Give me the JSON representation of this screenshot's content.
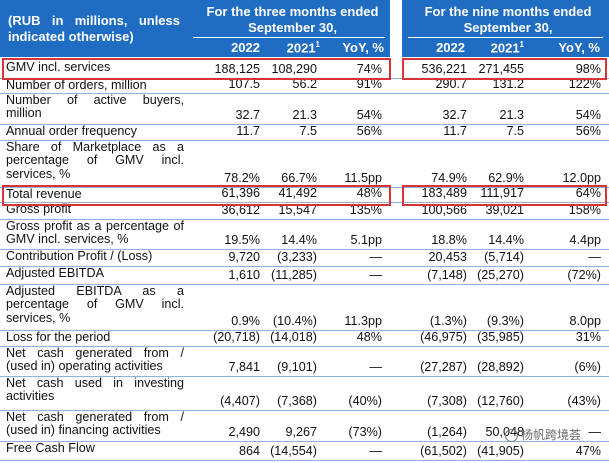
{
  "header": {
    "corner_label": "(RUB in millions, unless indicated otherwise)",
    "three_months": "For the three months ended September 30,",
    "nine_months": "For the nine months ended September 30,",
    "columns": [
      "2022",
      "2021",
      "YoY, %",
      "2022",
      "2021",
      "YoY, %"
    ],
    "footnote_mark": "1"
  },
  "rows": [
    {
      "label": "GMV incl. services",
      "values": [
        "188,125",
        "108,290",
        "74%",
        "536,221",
        "271,455",
        "98%"
      ]
    },
    {
      "label": "Number of orders, million",
      "values": [
        "107.5",
        "56.2",
        "91%",
        "290.7",
        "131.2",
        "122%"
      ]
    },
    {
      "label": "Number of active buyers, million",
      "values": [
        "32.7",
        "21.3",
        "54%",
        "32.7",
        "21.3",
        "54%"
      ]
    },
    {
      "label": "Annual order frequency",
      "values": [
        "11.7",
        "7.5",
        "56%",
        "11.7",
        "7.5",
        "56%"
      ]
    },
    {
      "label": "Share of Marketplace as a percentage of GMV incl. services, %",
      "values": [
        "78.2%",
        "66.7%",
        "11.5pp",
        "74.9%",
        "62.9%",
        "12.0pp"
      ]
    },
    {
      "label": "Total revenue",
      "values": [
        "61,396",
        "41,492",
        "48%",
        "183,489",
        "111,917",
        "64%"
      ]
    },
    {
      "label": "Gross profit",
      "values": [
        "36,612",
        "15,547",
        "135%",
        "100,566",
        "39,021",
        "158%"
      ]
    },
    {
      "label": "Gross profit as a percentage of GMV incl. services, %",
      "values": [
        "19.5%",
        "14.4%",
        "5.1pp",
        "18.8%",
        "14.4%",
        "4.4pp"
      ]
    },
    {
      "label": "Contribution Profit / (Loss)",
      "values": [
        "9,720",
        "(3,233)",
        "—",
        "20,453",
        "(5,714)",
        "—"
      ]
    },
    {
      "label": "Adjusted EBITDA",
      "values": [
        "1,610",
        "(11,285)",
        "—",
        "(7,148)",
        "(25,270)",
        "(72%)"
      ]
    },
    {
      "label": "Adjusted EBITDA as a percentage of GMV incl. services, %",
      "values": [
        "0.9%",
        "(10.4%)",
        "11.3pp",
        "(1.3%)",
        "(9.3%)",
        "8.0pp"
      ]
    },
    {
      "label": "Loss for the period",
      "values": [
        "(20,718)",
        "(14,018)",
        "48%",
        "(46,975)",
        "(35,985)",
        "31%"
      ]
    },
    {
      "label": "Net cash generated from / (used in) operating activities",
      "values": [
        "7,841",
        "(9,101)",
        "—",
        "(27,287)",
        "(28,892)",
        "(6%)"
      ]
    },
    {
      "label": "Net cash used in investing activities",
      "values": [
        "(4,407)",
        "(7,368)",
        "(40%)",
        "(7,308)",
        "(12,760)",
        "(43%)"
      ]
    },
    {
      "label": "Net cash generated from / (used in) financing activities",
      "values": [
        "2,490",
        "9,267",
        "(73%)",
        "(1,264)",
        "50,048",
        "—"
      ]
    },
    {
      "label": "Free Cash Flow",
      "values": [
        "864",
        "(14,554)",
        "—",
        "(61,502)",
        "(41,905)",
        "47%"
      ]
    }
  ],
  "watermark": "杨帆跨境荟",
  "colors": {
    "header_bg": "#1f6cc3",
    "highlight": "#d8323a",
    "rule": "#8db3de"
  }
}
